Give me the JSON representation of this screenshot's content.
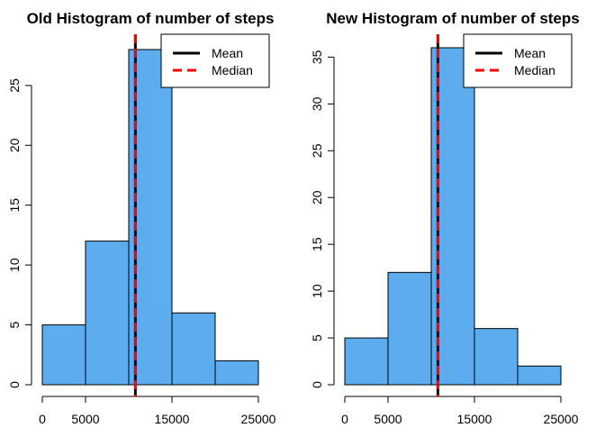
{
  "chart_data": [
    {
      "type": "histogram",
      "title": "Old Histogram of number of steps",
      "xlabel": "",
      "ylabel": "",
      "bin_edges": [
        0,
        5000,
        10000,
        15000,
        20000,
        25000
      ],
      "values": [
        5,
        12,
        28,
        6,
        2
      ],
      "xlim": [
        0,
        25000
      ],
      "ylim": [
        0,
        28
      ],
      "x_ticks": [
        0,
        5000,
        15000,
        25000
      ],
      "x_tick_labels": [
        "0",
        "5000",
        "15000",
        "25000"
      ],
      "y_ticks": [
        0,
        5,
        10,
        15,
        20,
        25
      ],
      "y_tick_labels": [
        "0",
        "5",
        "10",
        "15",
        "20",
        "25"
      ],
      "bar_color": "#5DADEE",
      "grid": false,
      "vlines": [
        {
          "name": "Mean",
          "value": 10766,
          "color": "#000000",
          "style": "solid"
        },
        {
          "name": "Median",
          "value": 10765,
          "color": "#FF0000",
          "style": "dashed"
        }
      ],
      "legend": {
        "position": "top-right",
        "entries": [
          {
            "label": "Mean",
            "color": "#000000",
            "style": "solid"
          },
          {
            "label": "Median",
            "color": "#FF0000",
            "style": "dashed"
          }
        ]
      }
    },
    {
      "type": "histogram",
      "title": "New Histogram of number of steps",
      "xlabel": "",
      "ylabel": "",
      "bin_edges": [
        0,
        5000,
        10000,
        15000,
        20000,
        25000
      ],
      "values": [
        5,
        12,
        36,
        6,
        2
      ],
      "xlim": [
        0,
        25000
      ],
      "ylim": [
        0,
        36
      ],
      "x_ticks": [
        0,
        5000,
        15000,
        25000
      ],
      "x_tick_labels": [
        "0",
        "5000",
        "15000",
        "25000"
      ],
      "y_ticks": [
        0,
        5,
        10,
        15,
        20,
        25,
        30,
        35
      ],
      "y_tick_labels": [
        "0",
        "5",
        "10",
        "15",
        "20",
        "25",
        "30",
        "35"
      ],
      "bar_color": "#5DADEE",
      "grid": false,
      "vlines": [
        {
          "name": "Mean",
          "value": 10766,
          "color": "#000000",
          "style": "solid"
        },
        {
          "name": "Median",
          "value": 10766,
          "color": "#FF0000",
          "style": "dashed"
        }
      ],
      "legend": {
        "position": "top-right",
        "entries": [
          {
            "label": "Mean",
            "color": "#000000",
            "style": "solid"
          },
          {
            "label": "Median",
            "color": "#FF0000",
            "style": "dashed"
          }
        ]
      }
    }
  ]
}
